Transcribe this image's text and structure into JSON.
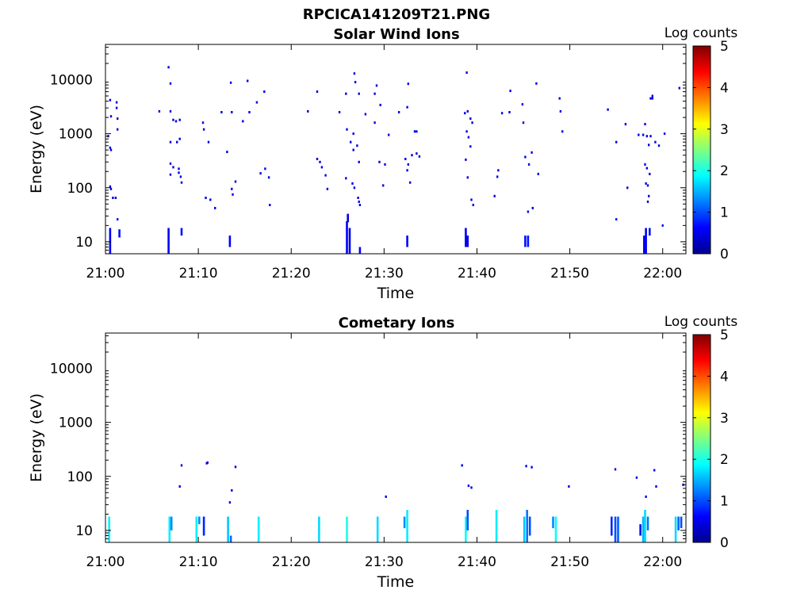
{
  "figure": {
    "title": "RPCICA141209T21.PNG"
  },
  "chart_data": [
    {
      "type": "heatmap",
      "title": "Solar Wind Ions",
      "xlabel": "Time",
      "ylabel": "Energy (eV)",
      "x_ticks": [
        "21:00",
        "21:10",
        "21:20",
        "21:30",
        "21:40",
        "21:50",
        "22:00"
      ],
      "x_range_minutes": [
        0,
        62.5
      ],
      "y_scale": "log",
      "y_ticks": [
        "10",
        "100",
        "1000",
        "10000"
      ],
      "y_range_eV": [
        6,
        45000
      ],
      "colorbar": {
        "label": "Log counts",
        "ticks": [
          "0",
          "1",
          "2",
          "3",
          "4",
          "5"
        ],
        "range": [
          0,
          5
        ],
        "colormap": "jet"
      },
      "points": [
        [
          0.5,
          4200,
          0.5
        ],
        [
          0.6,
          2100,
          0.5
        ],
        [
          0.3,
          900,
          0.5
        ],
        [
          0.5,
          550,
          0.5
        ],
        [
          0.6,
          500,
          0.5
        ],
        [
          0.5,
          105,
          0.5
        ],
        [
          0.6,
          95,
          0.5
        ],
        [
          0.8,
          65,
          0.5
        ],
        [
          1.1,
          65,
          0.5
        ],
        [
          1.2,
          3800,
          0.5
        ],
        [
          1.2,
          3000,
          0.5
        ],
        [
          1.3,
          1900,
          0.5
        ],
        [
          1.3,
          1200,
          0.5
        ],
        [
          1.3,
          26,
          0.7
        ],
        [
          5.8,
          2600,
          0.5
        ],
        [
          6.8,
          17000,
          0.5
        ],
        [
          7.0,
          8500,
          0.5
        ],
        [
          7.0,
          2600,
          0.5
        ],
        [
          7.3,
          1800,
          0.5
        ],
        [
          7.6,
          1700,
          0.5
        ],
        [
          8.0,
          1800,
          0.5
        ],
        [
          7.0,
          700,
          0.5
        ],
        [
          7.7,
          700,
          0.5
        ],
        [
          8.0,
          800,
          0.5
        ],
        [
          7.0,
          280,
          0.5
        ],
        [
          7.3,
          240,
          0.5
        ],
        [
          7.0,
          175,
          0.5
        ],
        [
          7.9,
          225,
          0.5
        ],
        [
          7.9,
          190,
          0.5
        ],
        [
          8.1,
          160,
          0.5
        ],
        [
          8.2,
          125,
          0.5
        ],
        [
          10.5,
          1600,
          0.5
        ],
        [
          10.6,
          1200,
          0.5
        ],
        [
          11.1,
          700,
          0.5
        ],
        [
          10.8,
          65,
          0.5
        ],
        [
          11.3,
          60,
          0.5
        ],
        [
          11.8,
          42,
          0.5
        ],
        [
          12.5,
          2500,
          0.5
        ],
        [
          13.5,
          8800,
          0.5
        ],
        [
          13.6,
          2500,
          0.5
        ],
        [
          13.1,
          460,
          0.5
        ],
        [
          13.6,
          95,
          0.5
        ],
        [
          13.7,
          75,
          0.5
        ],
        [
          14.0,
          130,
          0.5
        ],
        [
          14.8,
          1700,
          0.5
        ],
        [
          15.3,
          9500,
          0.5
        ],
        [
          15.5,
          2500,
          0.5
        ],
        [
          16.3,
          3800,
          0.5
        ],
        [
          16.7,
          185,
          0.5
        ],
        [
          17.2,
          225,
          0.5
        ],
        [
          17.6,
          155,
          0.5
        ],
        [
          17.7,
          48,
          0.5
        ],
        [
          17.1,
          6000,
          0.5
        ],
        [
          21.8,
          2600,
          0.5
        ],
        [
          22.8,
          6000,
          0.5
        ],
        [
          22.8,
          340,
          0.5
        ],
        [
          23.1,
          300,
          0.5
        ],
        [
          23.3,
          240,
          0.5
        ],
        [
          23.7,
          170,
          0.5
        ],
        [
          23.9,
          95,
          0.5
        ],
        [
          25.2,
          2500,
          0.5
        ],
        [
          25.9,
          5500,
          0.5
        ],
        [
          26.0,
          1200,
          0.5
        ],
        [
          25.9,
          150,
          0.5
        ],
        [
          26.4,
          700,
          0.5
        ],
        [
          26.7,
          500,
          0.5
        ],
        [
          26.7,
          1000,
          0.5
        ],
        [
          26.8,
          13000,
          0.5
        ],
        [
          26.9,
          9000,
          0.5
        ],
        [
          27.3,
          5500,
          0.5
        ],
        [
          27.1,
          600,
          0.5
        ],
        [
          27.3,
          300,
          0.5
        ],
        [
          27.2,
          65,
          0.5
        ],
        [
          27.3,
          55,
          0.5
        ],
        [
          27.4,
          48,
          0.5
        ],
        [
          26.6,
          120,
          0.5
        ],
        [
          26.8,
          100,
          0.5
        ],
        [
          28.0,
          2300,
          0.5
        ],
        [
          29.0,
          1600,
          0.5
        ],
        [
          29.0,
          5500,
          0.5
        ],
        [
          29.2,
          7800,
          0.5
        ],
        [
          29.6,
          3400,
          0.5
        ],
        [
          29.5,
          300,
          0.5
        ],
        [
          29.9,
          110,
          0.5
        ],
        [
          30.1,
          270,
          0.5
        ],
        [
          30.5,
          950,
          0.5
        ],
        [
          31.6,
          2500,
          0.5
        ],
        [
          32.3,
          340,
          0.5
        ],
        [
          32.5,
          3100,
          0.5
        ],
        [
          32.6,
          8400,
          0.5
        ],
        [
          32.5,
          210,
          0.5
        ],
        [
          32.6,
          270,
          0.5
        ],
        [
          33.0,
          400,
          0.5
        ],
        [
          33.3,
          1100,
          0.5
        ],
        [
          33.5,
          1100,
          0.5
        ],
        [
          33.5,
          430,
          0.5
        ],
        [
          33.8,
          380,
          0.5
        ],
        [
          32.8,
          125,
          0.5
        ],
        [
          38.9,
          13500,
          0.5
        ],
        [
          38.7,
          2400,
          0.5
        ],
        [
          39.0,
          2600,
          0.5
        ],
        [
          39.3,
          1900,
          0.5
        ],
        [
          39.5,
          1600,
          0.5
        ],
        [
          38.9,
          1100,
          0.5
        ],
        [
          39.1,
          860,
          0.5
        ],
        [
          39.3,
          580,
          0.5
        ],
        [
          38.8,
          330,
          0.5
        ],
        [
          39.0,
          155,
          0.5
        ],
        [
          39.4,
          60,
          0.5
        ],
        [
          39.6,
          48,
          0.5
        ],
        [
          41.9,
          70,
          0.5
        ],
        [
          42.2,
          160,
          0.5
        ],
        [
          42.3,
          210,
          0.5
        ],
        [
          42.7,
          2400,
          0.5
        ],
        [
          43.6,
          6200,
          0.5
        ],
        [
          43.5,
          2500,
          0.5
        ],
        [
          44.9,
          3500,
          0.5
        ],
        [
          45.0,
          1600,
          0.5
        ],
        [
          45.2,
          370,
          0.5
        ],
        [
          45.6,
          270,
          0.5
        ],
        [
          45.9,
          450,
          0.5
        ],
        [
          45.5,
          36,
          0.5
        ],
        [
          46.4,
          8500,
          0.5
        ],
        [
          46.0,
          42,
          0.5
        ],
        [
          46.6,
          180,
          0.5
        ],
        [
          48.9,
          4500,
          0.5
        ],
        [
          49.0,
          2600,
          0.5
        ],
        [
          49.2,
          1100,
          0.5
        ],
        [
          54.1,
          2800,
          0.5
        ],
        [
          55.0,
          700,
          0.5
        ],
        [
          55.0,
          26,
          0.7
        ],
        [
          56.0,
          1500,
          0.5
        ],
        [
          56.2,
          100,
          0.5
        ],
        [
          57.4,
          950,
          0.5
        ],
        [
          57.9,
          950,
          0.5
        ],
        [
          58.1,
          1500,
          0.5
        ],
        [
          58.3,
          900,
          0.5
        ],
        [
          58.7,
          900,
          0.5
        ],
        [
          58.1,
          270,
          0.5
        ],
        [
          58.3,
          230,
          0.5
        ],
        [
          58.6,
          180,
          0.5
        ],
        [
          58.2,
          120,
          0.5
        ],
        [
          58.4,
          110,
          0.5
        ],
        [
          58.5,
          70,
          0.5
        ],
        [
          58.4,
          55,
          0.5
        ],
        [
          58.7,
          4500,
          0.5
        ],
        [
          58.9,
          4500,
          0.5
        ],
        [
          58.9,
          5000,
          0.5
        ],
        [
          59.2,
          700,
          0.5
        ],
        [
          59.6,
          600,
          0.5
        ],
        [
          58.5,
          620,
          0.5
        ],
        [
          60.2,
          1000,
          0.5
        ],
        [
          61.8,
          7000,
          0.5
        ],
        [
          60.0,
          20,
          0.7
        ]
      ],
      "columns": [
        [
          0.5,
          6,
          18,
          0.6
        ],
        [
          1.5,
          12,
          17,
          0.7
        ],
        [
          6.8,
          6,
          18,
          0.6
        ],
        [
          8.2,
          13,
          18,
          0.7
        ],
        [
          13.4,
          8,
          13,
          0.6
        ],
        [
          26.0,
          6,
          24,
          0.6
        ],
        [
          26.3,
          6,
          18,
          0.5
        ],
        [
          26.1,
          23,
          33,
          0.5
        ],
        [
          27.4,
          6,
          8,
          0.6
        ],
        [
          32.5,
          8,
          13,
          0.6
        ],
        [
          38.8,
          8,
          18,
          0.6
        ],
        [
          39.0,
          8,
          13,
          0.5
        ],
        [
          45.2,
          8,
          13,
          0.7
        ],
        [
          45.5,
          8,
          13,
          0.7
        ],
        [
          58.0,
          6,
          13,
          0.6
        ],
        [
          58.2,
          6,
          18,
          0.6
        ],
        [
          58.6,
          13,
          18,
          0.7
        ]
      ]
    },
    {
      "type": "heatmap",
      "title": "Cometary Ions",
      "xlabel": "Time",
      "ylabel": "Energy (eV)",
      "x_ticks": [
        "21:00",
        "21:10",
        "21:20",
        "21:30",
        "21:40",
        "21:50",
        "22:00"
      ],
      "x_range_minutes": [
        0,
        62.5
      ],
      "y_scale": "log",
      "y_ticks": [
        "10",
        "100",
        "1000",
        "10000"
      ],
      "y_range_eV": [
        6,
        45000
      ],
      "colorbar": {
        "label": "Log counts",
        "ticks": [
          "0",
          "1",
          "2",
          "3",
          "4",
          "5"
        ],
        "range": [
          0,
          5
        ],
        "colormap": "jet"
      },
      "points": [
        [
          8.2,
          160,
          0.5
        ],
        [
          8.0,
          65,
          0.5
        ],
        [
          10.9,
          175,
          0.5
        ],
        [
          11.0,
          180,
          0.5
        ],
        [
          14.0,
          150,
          0.5
        ],
        [
          13.6,
          55,
          0.5
        ],
        [
          13.4,
          33,
          0.5
        ],
        [
          30.2,
          42,
          0.5
        ],
        [
          38.4,
          160,
          0.5
        ],
        [
          39.1,
          67,
          0.5
        ],
        [
          39.4,
          62,
          0.5
        ],
        [
          45.3,
          155,
          0.5
        ],
        [
          45.9,
          148,
          0.5
        ],
        [
          49.9,
          65,
          0.5
        ],
        [
          54.9,
          135,
          0.5
        ],
        [
          57.2,
          95,
          0.5
        ],
        [
          58.2,
          42,
          0.5
        ],
        [
          59.1,
          130,
          0.5
        ],
        [
          59.3,
          65,
          0.5
        ],
        [
          62.2,
          70,
          0.5
        ]
      ],
      "columns": [
        [
          0.4,
          6,
          18,
          1.8
        ],
        [
          6.9,
          6,
          18,
          1.8
        ],
        [
          7.1,
          10,
          18,
          1.3
        ],
        [
          9.8,
          6,
          18,
          1.8
        ],
        [
          10.1,
          13,
          18,
          1.3
        ],
        [
          10.6,
          8,
          18,
          0.8
        ],
        [
          13.2,
          6,
          18,
          1.6
        ],
        [
          13.5,
          6,
          8,
          1.1
        ],
        [
          16.5,
          6,
          18,
          1.8
        ],
        [
          23.0,
          6,
          18,
          1.7
        ],
        [
          26.0,
          6,
          18,
          2.0
        ],
        [
          29.3,
          6,
          18,
          1.7
        ],
        [
          32.2,
          11,
          18,
          1.3
        ],
        [
          32.5,
          6,
          24,
          1.8
        ],
        [
          38.8,
          6,
          18,
          1.9
        ],
        [
          39.0,
          10,
          24,
          1.0
        ],
        [
          42.1,
          6,
          24,
          1.8
        ],
        [
          45.1,
          6,
          18,
          1.6
        ],
        [
          45.4,
          6,
          24,
          1.2
        ],
        [
          45.7,
          8,
          18,
          1.0
        ],
        [
          48.2,
          11,
          18,
          1.3
        ],
        [
          48.5,
          6,
          18,
          1.9
        ],
        [
          54.5,
          8,
          18,
          0.8
        ],
        [
          54.9,
          6,
          18,
          1.0
        ],
        [
          55.2,
          6,
          18,
          1.1
        ],
        [
          57.6,
          8,
          13,
          0.7
        ],
        [
          57.9,
          6,
          18,
          1.5
        ],
        [
          58.1,
          6,
          24,
          1.7
        ],
        [
          58.4,
          10,
          18,
          1.2
        ],
        [
          61.4,
          6,
          18,
          1.7
        ],
        [
          61.7,
          10,
          18,
          1.1
        ],
        [
          62.0,
          11,
          18,
          1.0
        ]
      ]
    }
  ]
}
